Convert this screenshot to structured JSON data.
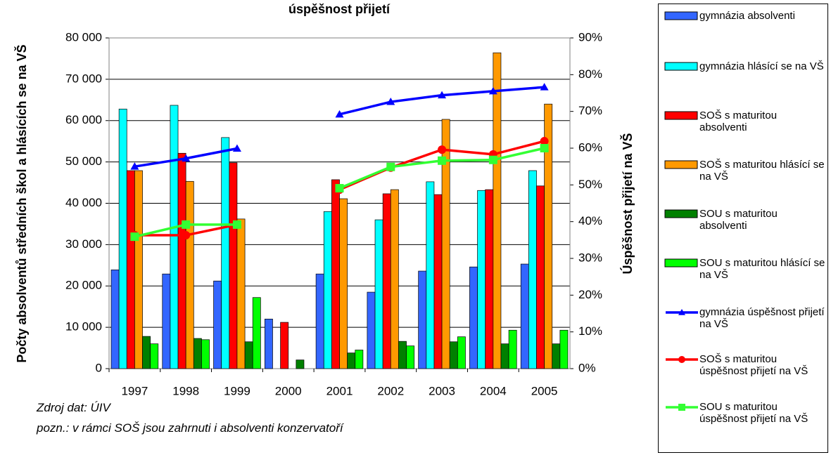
{
  "chart_data": {
    "type": "bar-line",
    "title": "úspěšnost přijetí",
    "y_label": "Počty absolventů středních škol a hlásících se na VŠ",
    "y2_label": "Úspěšnost přijetí na VŠ",
    "categories": [
      "1997",
      "1998",
      "1999",
      "2000",
      "2001",
      "2002",
      "2003",
      "2004",
      "2005"
    ],
    "ylim": [
      0,
      80000
    ],
    "yticks": [
      0,
      {
        "value": 10000,
        "label": "10 000"
      },
      {
        "value": 20000,
        "label": "20 000"
      },
      {
        "value": 30000,
        "label": "30 000"
      },
      {
        "value": 40000,
        "label": "40 000"
      },
      {
        "value": 50000,
        "label": "50 000"
      },
      {
        "value": 60000,
        "label": "60 000"
      },
      {
        "value": 70000,
        "label": "70 000"
      },
      {
        "value": 80000,
        "label": "80 000"
      }
    ],
    "y2lim": [
      0,
      90
    ],
    "y2ticks": [
      {
        "value": 0,
        "label": "0%"
      },
      {
        "value": 10,
        "label": "10%"
      },
      {
        "value": 20,
        "label": "20%"
      },
      {
        "value": 30,
        "label": "30%"
      },
      {
        "value": 40,
        "label": "40%"
      },
      {
        "value": 50,
        "label": "50%"
      },
      {
        "value": 60,
        "label": "60%"
      },
      {
        "value": 70,
        "label": "70%"
      },
      {
        "value": 80,
        "label": "80%"
      },
      {
        "value": 90,
        "label": "90%"
      }
    ],
    "grid": true,
    "series": [
      {
        "name": "gymnázia absolventi",
        "kind": "bar",
        "color": "#3366ff",
        "values": [
          23900,
          22900,
          21200,
          12000,
          22900,
          18500,
          23600,
          24600,
          25300
        ]
      },
      {
        "name": "gymnázia hlásící se na VŠ",
        "kind": "bar",
        "color": "#00ffff",
        "values": [
          62800,
          63700,
          55900,
          null,
          38000,
          36000,
          45200,
          43100,
          47900
        ]
      },
      {
        "name": "SOŠ s maturitou absolventi",
        "kind": "bar",
        "color": "#ff0000",
        "values": [
          47900,
          52100,
          49800,
          11200,
          45700,
          42300,
          42100,
          43300,
          44200
        ]
      },
      {
        "name": "SOŠ s maturitou hlásící se na VŠ",
        "kind": "bar",
        "color": "#ff9900",
        "values": [
          47900,
          45300,
          36200,
          null,
          41100,
          43300,
          60300,
          76400,
          64000
        ]
      },
      {
        "name": "SOU s maturitou absolventi",
        "kind": "bar",
        "color": "#008000",
        "values": [
          7800,
          7300,
          6500,
          2100,
          3800,
          6600,
          6500,
          6000,
          6000
        ]
      },
      {
        "name": "SOU s maturitou hlásící se na VŠ",
        "kind": "bar",
        "color": "#00ff00",
        "values": [
          6000,
          7000,
          17200,
          null,
          4500,
          5500,
          7700,
          9300,
          9300
        ]
      },
      {
        "name": "gymnázia úspěšnost přijetí na VŠ",
        "kind": "line",
        "marker": "triangle",
        "axis": "y2",
        "color": "#0000ff",
        "values": [
          55,
          57.2,
          59.9,
          null,
          69.2,
          72.6,
          74.4,
          75.5,
          76.6
        ]
      },
      {
        "name": "SOŠ s maturitou úspěšnost přijetí na VŠ",
        "kind": "line",
        "marker": "circle",
        "axis": "y2",
        "color": "#ff0000",
        "values": [
          36.3,
          36.3,
          39.2,
          null,
          48.7,
          54.7,
          59.6,
          58.3,
          61.9
        ]
      },
      {
        "name": "SOU s maturitou úspěšnost přijetí na VŠ",
        "kind": "line",
        "marker": "square",
        "axis": "y2",
        "color": "#33ff33",
        "values": [
          35.9,
          39.2,
          39.2,
          null,
          49.1,
          54.9,
          56.6,
          56.8,
          60
        ]
      }
    ],
    "notes": [
      "Zdroj dat: ÚIV",
      "pozn.: v rámci SOŠ jsou zahrnuti i absolventi konzervatoří"
    ]
  }
}
